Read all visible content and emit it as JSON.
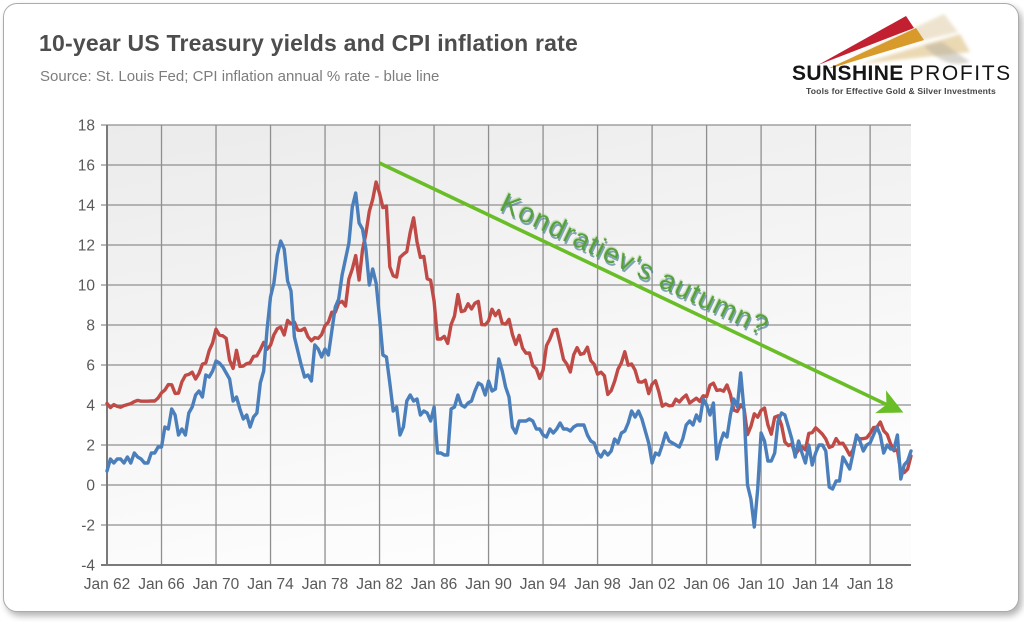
{
  "header": {
    "title": "10-year US Treasury yields and CPI inflation rate",
    "subtitle": "Source: St. Louis Fed; CPI inflation annual % rate - blue line"
  },
  "logo": {
    "name_bold": "SUNSHINE",
    "name_light": "PROFITS",
    "tagline": "Tools for Effective Gold & Silver Investments"
  },
  "chart_data": {
    "type": "line",
    "title": "10-year US Treasury yields and CPI inflation rate",
    "xlabel": "",
    "ylabel": "",
    "ylim": [
      -4,
      18
    ],
    "y_tick_step": 2,
    "y_ticks": [
      18,
      16,
      14,
      12,
      10,
      8,
      6,
      4,
      2,
      0,
      -2,
      -4
    ],
    "x_start_year": 1962,
    "x_end_year": 2021,
    "points_per_year": 4,
    "x_tick_years": [
      1962,
      1966,
      1970,
      1974,
      1978,
      1982,
      1986,
      1990,
      1994,
      1998,
      2002,
      2006,
      2010,
      2014,
      2018
    ],
    "x_tick_labels": [
      "Jan 62",
      "Jan 66",
      "Jan 70",
      "Jan 74",
      "Jan 78",
      "Jan 82",
      "Jan 86",
      "Jan 90",
      "Jan 94",
      "Jan 98",
      "Jan 02",
      "Jan 06",
      "Jan 10",
      "Jan 14",
      "Jan 18"
    ],
    "grid": true,
    "legend_position": "none",
    "colors": {
      "treasury": "#bf4a46",
      "cpi": "#4a7fbc",
      "gridline": "#8f8f8f",
      "axis": "#7a7a7a",
      "tick_text": "#595959",
      "arrow": "#69be28",
      "plot_bg_top": "#ebebeb",
      "plot_bg_bottom": "#fdfdfd"
    },
    "series": [
      {
        "name": "10-year US Treasury yields (red line)",
        "color": "#bf4a46",
        "values": [
          4.08,
          3.87,
          4.02,
          3.93,
          3.89,
          3.97,
          4.02,
          4.07,
          4.17,
          4.23,
          4.19,
          4.19,
          4.19,
          4.2,
          4.2,
          4.35,
          4.61,
          4.75,
          5.02,
          5.01,
          4.58,
          4.59,
          5.16,
          5.48,
          5.53,
          5.64,
          5.3,
          5.58,
          6.04,
          6.11,
          6.72,
          7.1,
          7.79,
          7.5,
          7.46,
          7.33,
          6.24,
          5.83,
          6.73,
          5.93,
          5.95,
          6.07,
          6.11,
          6.43,
          6.46,
          6.77,
          7.13,
          6.79,
          6.99,
          7.51,
          7.81,
          7.9,
          7.5,
          8.23,
          8.06,
          8.14,
          7.74,
          7.73,
          7.83,
          7.41,
          7.21,
          7.37,
          7.33,
          7.52,
          7.96,
          8.15,
          8.64,
          8.64,
          9.1,
          9.18,
          8.95,
          10.3,
          10.8,
          11.47,
          10.25,
          11.75,
          12.57,
          13.68,
          14.28,
          15.15,
          14.59,
          13.87,
          13.95,
          10.91,
          10.46,
          10.4,
          11.38,
          11.54,
          11.67,
          12.63,
          13.36,
          12.16,
          11.38,
          11.43,
          10.31,
          10.24,
          9.19,
          7.3,
          7.3,
          7.43,
          7.08,
          8.02,
          8.45,
          9.52,
          8.67,
          8.72,
          9.06,
          8.8,
          9.09,
          9.18,
          8.02,
          8.01,
          8.21,
          8.79,
          8.47,
          8.72,
          8.09,
          8.04,
          8.28,
          7.53,
          7.03,
          7.48,
          6.84,
          6.59,
          6.6,
          5.97,
          5.81,
          5.33,
          5.75,
          6.97,
          7.3,
          7.74,
          7.78,
          7.06,
          6.28,
          6.04,
          5.65,
          6.51,
          6.87,
          6.53,
          6.58,
          6.89,
          6.22,
          6.03,
          5.54,
          5.64,
          5.46,
          4.53,
          4.72,
          5.18,
          5.79,
          6.11,
          6.66,
          5.99,
          6.05,
          5.74,
          5.16,
          5.14,
          5.24,
          4.57,
          5.04,
          5.21,
          4.65,
          3.94,
          4.05,
          3.96,
          3.98,
          4.29,
          4.15,
          4.35,
          4.5,
          4.1,
          4.22,
          4.34,
          4.18,
          4.46,
          4.42,
          4.99,
          5.09,
          4.73,
          4.76,
          4.69,
          5.0,
          4.53,
          3.74,
          3.68,
          4.01,
          3.81,
          2.52,
          2.93,
          3.56,
          3.39,
          3.73,
          3.85,
          3.01,
          2.54,
          3.39,
          3.46,
          3.0,
          2.15,
          1.97,
          2.05,
          1.53,
          1.75,
          1.91,
          1.76,
          2.58,
          2.62,
          2.86,
          2.71,
          2.54,
          2.3,
          1.88,
          1.94,
          2.32,
          2.07,
          2.09,
          1.81,
          1.5,
          1.76,
          2.43,
          2.3,
          2.32,
          2.36,
          2.58,
          2.87,
          2.89,
          3.15,
          2.71,
          2.53,
          2.06,
          1.71,
          1.76,
          0.66,
          0.62,
          0.79,
          1.45
        ]
      },
      {
        "name": "CPI inflation annual % rate (blue line)",
        "color": "#4a7fbc",
        "values": [
          0.7,
          1.3,
          1.1,
          1.3,
          1.3,
          1.1,
          1.4,
          1.1,
          1.6,
          1.4,
          1.3,
          1.1,
          1.1,
          1.6,
          1.6,
          1.9,
          1.9,
          2.9,
          2.8,
          3.8,
          3.5,
          2.5,
          2.8,
          2.5,
          3.6,
          3.9,
          4.5,
          4.7,
          4.4,
          5.5,
          5.4,
          5.7,
          6.2,
          6.1,
          5.9,
          5.6,
          5.3,
          4.2,
          4.4,
          3.8,
          3.3,
          3.5,
          2.9,
          3.4,
          3.6,
          5.1,
          5.7,
          7.8,
          9.4,
          10.1,
          11.5,
          12.2,
          11.8,
          10.2,
          9.7,
          7.4,
          6.7,
          6.0,
          5.4,
          5.5,
          5.2,
          7.0,
          6.8,
          6.4,
          6.8,
          6.5,
          7.7,
          8.9,
          9.3,
          10.5,
          11.3,
          12.1,
          13.9,
          14.6,
          13.1,
          12.8,
          11.8,
          10.0,
          10.8,
          10.1,
          8.4,
          6.5,
          6.4,
          5.1,
          3.7,
          3.9,
          2.5,
          2.9,
          4.2,
          4.5,
          4.2,
          4.3,
          3.5,
          3.7,
          3.6,
          3.2,
          3.9,
          1.6,
          1.6,
          1.5,
          1.5,
          3.8,
          3.9,
          4.5,
          4.0,
          3.9,
          4.1,
          4.2,
          4.7,
          5.1,
          5.0,
          4.5,
          5.2,
          4.7,
          4.8,
          6.3,
          5.7,
          4.9,
          4.4,
          2.9,
          2.6,
          3.2,
          3.2,
          3.2,
          3.3,
          3.2,
          2.8,
          2.8,
          2.5,
          2.4,
          2.8,
          2.6,
          2.8,
          3.1,
          2.8,
          2.8,
          2.7,
          2.9,
          3.0,
          3.0,
          3.0,
          2.5,
          2.2,
          2.1,
          1.6,
          1.4,
          1.7,
          1.5,
          1.7,
          2.3,
          2.1,
          2.6,
          2.7,
          3.1,
          3.7,
          3.4,
          3.7,
          3.3,
          2.7,
          2.1,
          1.1,
          1.6,
          1.5,
          2.0,
          2.6,
          2.2,
          2.1,
          2.0,
          1.9,
          2.3,
          3.0,
          3.2,
          3.0,
          3.5,
          3.2,
          4.3,
          4.0,
          3.5,
          4.1,
          1.3,
          2.1,
          2.6,
          2.4,
          3.5,
          4.3,
          3.9,
          5.6,
          3.7,
          0.0,
          -0.7,
          -2.1,
          -0.2,
          2.6,
          2.2,
          1.2,
          1.2,
          1.6,
          3.2,
          3.6,
          3.5,
          2.9,
          2.3,
          1.4,
          2.2,
          1.6,
          1.1,
          2.0,
          1.0,
          1.6,
          2.0,
          2.0,
          1.7,
          -0.1,
          -0.2,
          0.2,
          0.2,
          1.4,
          1.1,
          0.8,
          1.6,
          2.5,
          2.2,
          1.7,
          2.0,
          2.1,
          2.5,
          2.9,
          2.5,
          1.6,
          2.0,
          1.8,
          1.8,
          2.5,
          0.3,
          1.0,
          1.2,
          1.7
        ]
      }
    ],
    "annotation": {
      "text": "Kondratiev's autumn?",
      "arrow_from": {
        "year": 1982.0,
        "value": 16.1
      },
      "arrow_to": {
        "year": 2020.2,
        "value": 3.7
      },
      "color": "#69be28"
    }
  }
}
